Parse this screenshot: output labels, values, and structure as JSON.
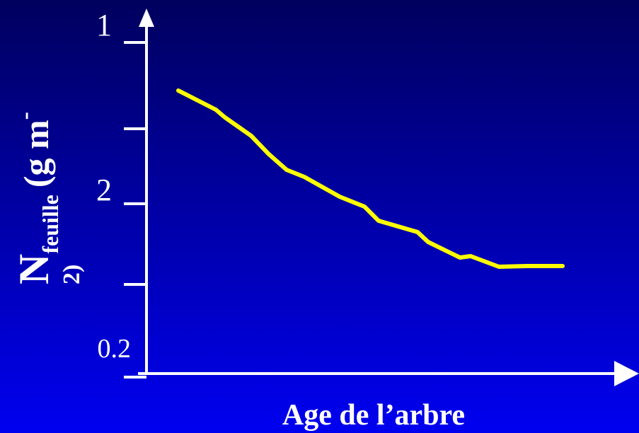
{
  "y_axis": {
    "symbol": "N",
    "subscript": "feuille",
    "unit": "(g m",
    "superscript": "-",
    "unit_end": "2)"
  },
  "y_tick_labels": [
    "1",
    "2",
    "0.2"
  ],
  "x_axis": {
    "label": "Age de l’arbre"
  }
}
